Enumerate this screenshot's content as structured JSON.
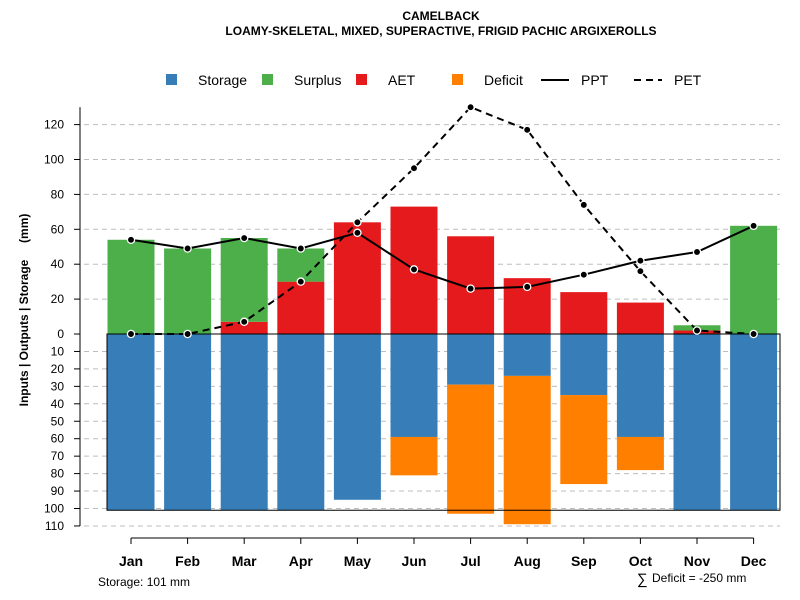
{
  "chart_data": {
    "type": "bar",
    "title": "CAMELBACK",
    "subtitle": "LOAMY-SKELETAL, MIXED, SUPERACTIVE, FRIGID PACHIC ARGIXEROLLS",
    "ylabel": "Inputs | Outputs | Storage     (mm)",
    "xlabel": "",
    "categories": [
      "Jan",
      "Feb",
      "Mar",
      "Apr",
      "May",
      "Jun",
      "Jul",
      "Aug",
      "Sep",
      "Oct",
      "Nov",
      "Dec"
    ],
    "y_upper_ticks": [
      0,
      20,
      40,
      60,
      80,
      100,
      120
    ],
    "y_lower_ticks": [
      10,
      20,
      30,
      40,
      50,
      60,
      70,
      80,
      90,
      100,
      110
    ],
    "ylim_upper": [
      0,
      130
    ],
    "ylim_lower": [
      0,
      110
    ],
    "storage_capacity": 101,
    "legend": [
      {
        "label": "Storage",
        "type": "box",
        "color": "#377EB8"
      },
      {
        "label": "Surplus",
        "type": "box",
        "color": "#4DAF4A"
      },
      {
        "label": "AET",
        "type": "box",
        "color": "#E41A1C"
      },
      {
        "label": "Deficit",
        "type": "box",
        "color": "#FF7F00"
      },
      {
        "label": "PPT",
        "type": "solid",
        "color": "#000000"
      },
      {
        "label": "PET",
        "type": "dashed",
        "color": "#000000"
      }
    ],
    "series": [
      {
        "name": "AET",
        "color": "#E41A1C",
        "values": [
          0,
          0,
          7,
          30,
          64,
          73,
          56,
          32,
          24,
          18,
          2,
          0
        ]
      },
      {
        "name": "Surplus",
        "color": "#4DAF4A",
        "values": [
          54,
          49,
          48,
          19,
          0,
          0,
          0,
          0,
          0,
          0,
          3,
          62
        ]
      },
      {
        "name": "Storage",
        "color": "#377EB8",
        "values": [
          101,
          101,
          101,
          101,
          95,
          59,
          29,
          24,
          35,
          59,
          101,
          101
        ]
      },
      {
        "name": "Deficit",
        "color": "#FF7F00",
        "values": [
          0,
          0,
          0,
          0,
          0,
          22,
          74,
          85,
          51,
          19,
          0,
          0
        ]
      },
      {
        "name": "PPT",
        "color": "#000000",
        "values": [
          54,
          49,
          55,
          49,
          58,
          37,
          26,
          27,
          34,
          42,
          47,
          62
        ]
      },
      {
        "name": "PET",
        "color": "#000000",
        "values": [
          0,
          0,
          7,
          30,
          64,
          95,
          130,
          117,
          74,
          36,
          2,
          0
        ]
      }
    ],
    "annotations": {
      "storage_note": "Storage: 101 mm",
      "deficit_symbol": "∑",
      "deficit_note": "Deficit = -250 mm"
    }
  }
}
